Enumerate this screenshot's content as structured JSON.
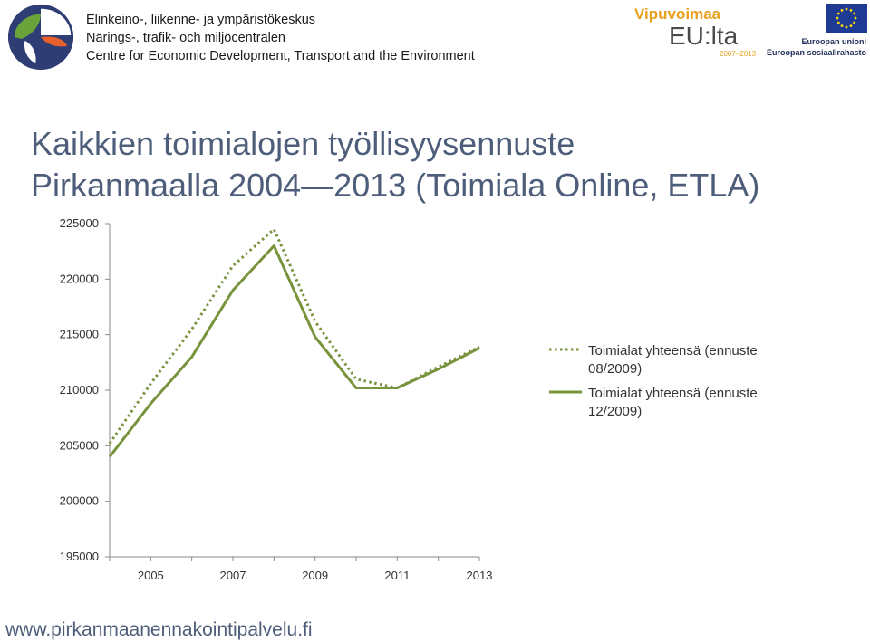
{
  "header": {
    "org_lines": [
      "Elinkeino-, liikenne- ja ympäristökeskus",
      "Närings-, trafik- och miljöcentralen",
      "Centre for Economic Development, Transport and the Environment"
    ],
    "eu_program_logo": {
      "line1": "Vipuvoimaa",
      "line2": "EU:lta",
      "years": "2007–2013"
    },
    "eu_flag_caption": {
      "line1": "Euroopan unioni",
      "line2": "Euroopan sosiaalirahasto"
    }
  },
  "title_lines": [
    "Kaikkien toimialojen työllisyysennuste",
    "Pirkanmaalla 2004—2013 (Toimiala Online, ETLA)"
  ],
  "footer": {
    "url": "www.pirkanmaanennakointipalvelu.fi"
  },
  "colors": {
    "series": "#77933c",
    "axis": "#888888",
    "title": "#4e5e7a",
    "eu_blue": "#1f3a93",
    "eu_gold": "#ffdd00"
  },
  "icons": [
    "ely-centre-logo",
    "eu-flag-icon"
  ],
  "chart_data": {
    "type": "line",
    "x": [
      2004,
      2005,
      2006,
      2007,
      2008,
      2009,
      2010,
      2011,
      2012,
      2013
    ],
    "xtick_labels": [
      "2005",
      "2007",
      "2009",
      "2011",
      "2013"
    ],
    "ytick_labels": [
      "195000",
      "200000",
      "205000",
      "210000",
      "215000",
      "220000",
      "225000"
    ],
    "ylim": [
      195000,
      225000
    ],
    "series": [
      {
        "name": "Toimialat yhteensä (ennuste 08/2009)",
        "style": "dotted",
        "legend_lines": [
          "Toimialat yhteensä (ennuste",
          "08/2009)"
        ],
        "values": [
          205200,
          210600,
          215500,
          221200,
          224500,
          216200,
          211000,
          210200,
          212100,
          213900
        ]
      },
      {
        "name": "Toimialat yhteensä (ennuste 12/2009)",
        "style": "solid",
        "legend_lines": [
          "Toimialat yhteensä (ennuste",
          "12/2009)"
        ],
        "values": [
          204000,
          208800,
          213000,
          219000,
          223000,
          214800,
          210200,
          210200,
          211900,
          213800
        ]
      }
    ],
    "grid": false,
    "legend_position": "right"
  }
}
